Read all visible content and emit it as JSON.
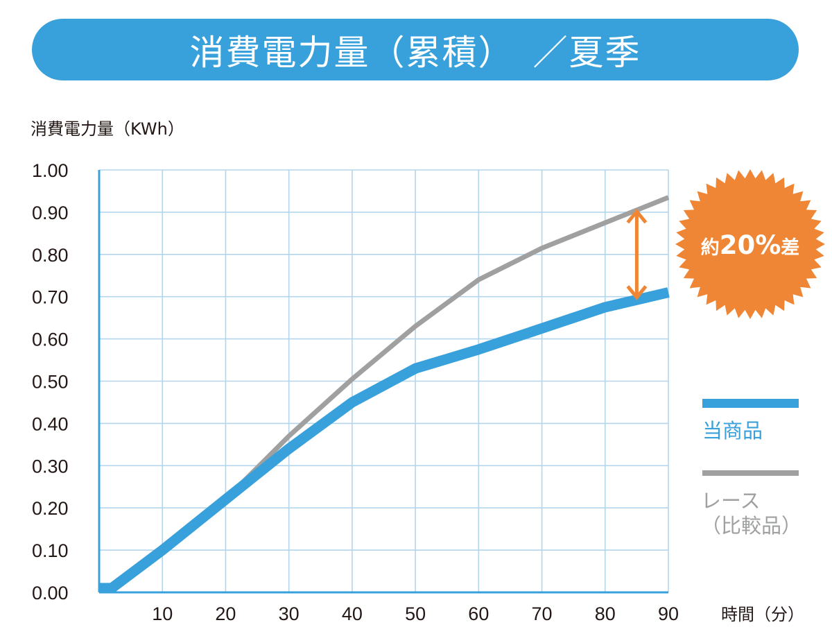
{
  "chart_data": {
    "type": "line",
    "title": "消費電力量（累積）　／夏季",
    "ylabel": "消費電力量（KWh）",
    "xlabel": "時間（分）",
    "xlim": [
      0,
      90
    ],
    "ylim": [
      0,
      1.0
    ],
    "x_ticks": [
      "10",
      "20",
      "30",
      "40",
      "50",
      "60",
      "70",
      "80",
      "90"
    ],
    "y_ticks": [
      "0.00",
      "0.10",
      "0.20",
      "0.30",
      "0.40",
      "0.50",
      "0.60",
      "0.70",
      "0.80",
      "0.90",
      "1.00"
    ],
    "grid": true,
    "legend_position": "right",
    "series": [
      {
        "name": "当商品",
        "color": "#38a1db",
        "x": [
          0,
          2,
          10,
          20,
          30,
          40,
          50,
          60,
          70,
          80,
          90
        ],
        "y": [
          0.01,
          0.01,
          0.1,
          0.22,
          0.34,
          0.45,
          0.53,
          0.575,
          0.625,
          0.675,
          0.71
        ]
      },
      {
        "name": "レース\n（比較品）",
        "color": "#a0a0a0",
        "x": [
          0,
          2,
          10,
          20,
          30,
          40,
          50,
          60,
          70,
          80,
          90
        ],
        "y": [
          0.01,
          0.01,
          0.1,
          0.22,
          0.37,
          0.505,
          0.63,
          0.74,
          0.815,
          0.875,
          0.935
        ]
      }
    ],
    "annotation": {
      "text_prefix": "約",
      "text_value": "20%",
      "text_suffix": "差",
      "x": 85,
      "y_from": 0.905,
      "y_to": 0.695,
      "color": "#ee8635"
    }
  },
  "legend": {
    "items": [
      {
        "label": "当商品",
        "color": "#38a1db",
        "text_color": "#38a1db"
      },
      {
        "label": "レース\n（比較品）",
        "color": "#a0a0a0",
        "text_color": "#9fa0a0"
      }
    ]
  },
  "colors": {
    "banner": "#38a1db",
    "grid": "#b3d6ec",
    "axis": "#38a1db"
  }
}
